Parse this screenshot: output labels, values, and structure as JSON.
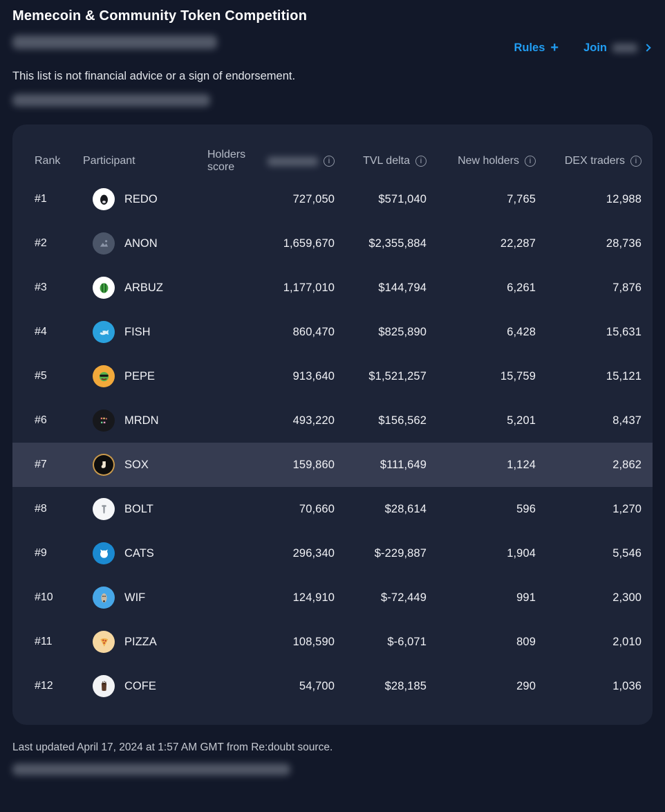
{
  "header": {
    "title": "Memecoin & Community Token Competition",
    "disclaimer": "This list is not financial advice or a sign of endorsement.",
    "actions": {
      "rules_label": "Rules",
      "join_label": "Join"
    }
  },
  "icons": {
    "info_glyph": "i",
    "plus_glyph": "+"
  },
  "colors": {
    "page_bg": "#121829",
    "card_bg": "#1d2437",
    "row_highlight": "#363c51",
    "link_blue": "#219df2",
    "column_header_text": "#b6bcc8",
    "row_text": "#f1f2f6",
    "footer_text": "#c6cad2"
  },
  "table": {
    "headers": {
      "rank": "Rank",
      "participant": "Participant",
      "holders_score": "Holders score",
      "tvl_delta": "TVL delta",
      "new_holders": "New holders",
      "dex_traders": "DEX traders"
    },
    "rows": [
      {
        "rank": "#1",
        "name": "REDO",
        "icon": "redo-token-icon",
        "glyph": "egg",
        "icon_bg": "#ffffff",
        "icon_fg": "#17191e",
        "holders_score": "727,050",
        "tvl_delta": "$571,040",
        "new_holders": "7,765",
        "dex_traders": "12,988",
        "highlighted": false
      },
      {
        "rank": "#2",
        "name": "ANON",
        "icon": "anon-token-icon",
        "glyph": "image",
        "icon_bg": "#4b5568",
        "icon_fg": "#8b95a8",
        "holders_score": "1,659,670",
        "tvl_delta": "$2,355,884",
        "new_holders": "22,287",
        "dex_traders": "28,736",
        "highlighted": false
      },
      {
        "rank": "#3",
        "name": "ARBUZ",
        "icon": "arbuz-token-icon",
        "glyph": "melon",
        "icon_bg": "#ffffff",
        "icon_fg": "#3f9e3f",
        "holders_score": "1,177,010",
        "tvl_delta": "$144,794",
        "new_holders": "6,261",
        "dex_traders": "7,876",
        "highlighted": false
      },
      {
        "rank": "#4",
        "name": "FISH",
        "icon": "fish-token-icon",
        "glyph": "whale",
        "icon_bg": "#2aa1dd",
        "icon_fg": "#d9f1fb",
        "holders_score": "860,470",
        "tvl_delta": "$825,890",
        "new_holders": "6,428",
        "dex_traders": "15,631",
        "highlighted": false
      },
      {
        "rank": "#5",
        "name": "PEPE",
        "icon": "pepe-token-icon",
        "glyph": "frog",
        "icon_bg": "#f2a93b",
        "icon_fg": "#58b24a",
        "holders_score": "913,640",
        "tvl_delta": "$1,521,257",
        "new_holders": "15,759",
        "dex_traders": "15,121",
        "highlighted": false
      },
      {
        "rank": "#6",
        "name": "MRDN",
        "icon": "mrdn-token-icon",
        "glyph": "pixels",
        "icon_bg": "#17181c",
        "icon_fg": "#e2766a",
        "holders_score": "493,220",
        "tvl_delta": "$156,562",
        "new_holders": "5,201",
        "dex_traders": "8,437",
        "highlighted": false
      },
      {
        "rank": "#7",
        "name": "SOX",
        "icon": "sox-token-icon",
        "glyph": "sock",
        "icon_bg": "#0d0d0d",
        "icon_fg": "#f0e6d2",
        "icon_ring": "#c99a4e",
        "holders_score": "159,860",
        "tvl_delta": "$111,649",
        "new_holders": "1,124",
        "dex_traders": "2,862",
        "highlighted": true
      },
      {
        "rank": "#8",
        "name": "BOLT",
        "icon": "bolt-token-icon",
        "glyph": "screw",
        "icon_bg": "#f5f6f8",
        "icon_fg": "#8a9097",
        "holders_score": "70,660",
        "tvl_delta": "$28,614",
        "new_holders": "596",
        "dex_traders": "1,270",
        "highlighted": false
      },
      {
        "rank": "#9",
        "name": "CATS",
        "icon": "cats-token-icon",
        "glyph": "cat",
        "icon_bg": "#1b8ad1",
        "icon_fg": "#ffffff",
        "holders_score": "296,340",
        "tvl_delta": "$-229,887",
        "new_holders": "1,904",
        "dex_traders": "5,546",
        "highlighted": false
      },
      {
        "rank": "#10",
        "name": "WIF",
        "icon": "wif-token-icon",
        "glyph": "dog",
        "icon_bg": "#47a7e8",
        "icon_fg": "#cbb9a2",
        "holders_score": "124,910",
        "tvl_delta": "$-72,449",
        "new_holders": "991",
        "dex_traders": "2,300",
        "highlighted": false
      },
      {
        "rank": "#11",
        "name": "PIZZA",
        "icon": "pizza-token-icon",
        "glyph": "pizza",
        "icon_bg": "#f6d7a0",
        "icon_fg": "#f0b24a",
        "holders_score": "108,590",
        "tvl_delta": "$-6,071",
        "new_holders": "809",
        "dex_traders": "2,010",
        "highlighted": false
      },
      {
        "rank": "#12",
        "name": "COFE",
        "icon": "cofe-token-icon",
        "glyph": "cup",
        "icon_bg": "#f2f3f5",
        "icon_fg": "#5a3a28",
        "holders_score": "54,700",
        "tvl_delta": "$28,185",
        "new_holders": "290",
        "dex_traders": "1,036",
        "highlighted": false
      }
    ]
  },
  "footer": {
    "updated": "Last updated April 17, 2024 at 1:57 AM GMT from Re:doubt source."
  }
}
